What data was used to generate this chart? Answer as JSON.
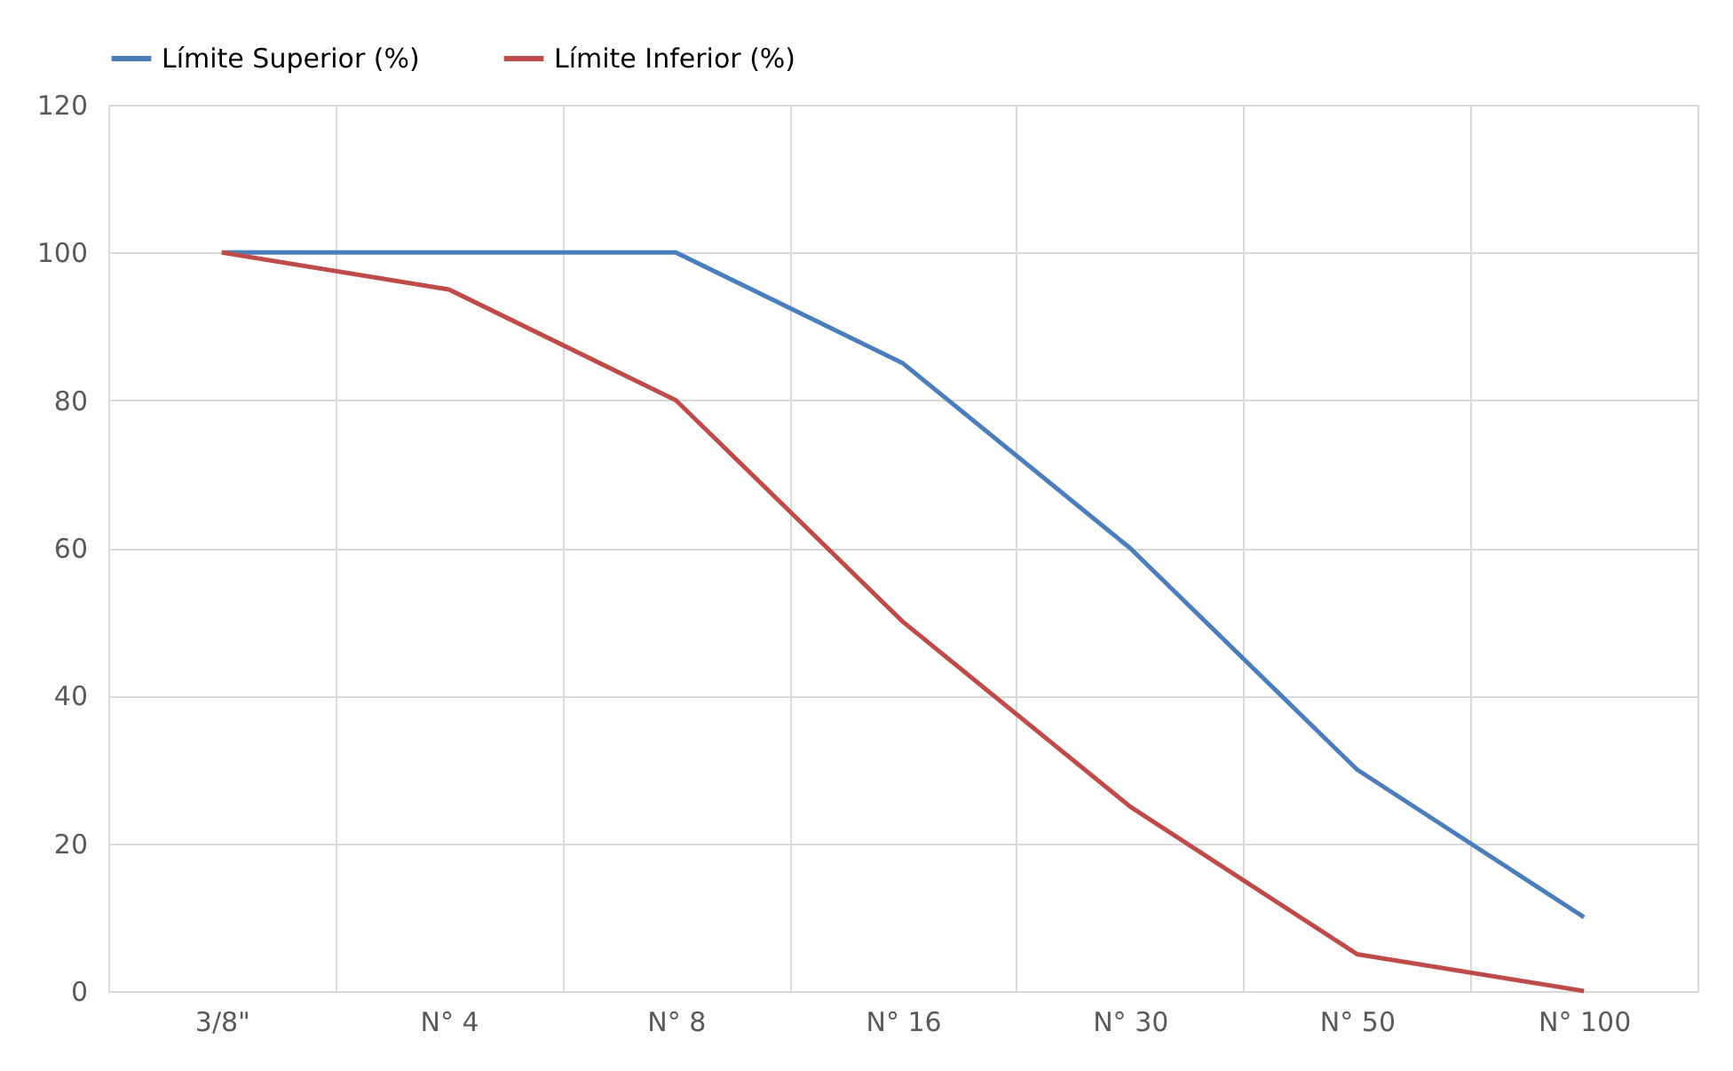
{
  "chart_data": {
    "type": "line",
    "categories": [
      "3/8\"",
      "N° 4",
      "N° 8",
      "N° 16",
      "N° 30",
      "N° 50",
      "N° 100"
    ],
    "series": [
      {
        "name": "Límite Superior (%)",
        "color": "#4a7ebb",
        "values": [
          100,
          100,
          100,
          85,
          60,
          30,
          10
        ]
      },
      {
        "name": "Límite Inferior (%)",
        "color": "#be4b48",
        "values": [
          100,
          95,
          80,
          50,
          25,
          5,
          0
        ]
      }
    ],
    "ylim": [
      0,
      120
    ],
    "yticks": [
      0,
      20,
      40,
      60,
      80,
      100,
      120
    ],
    "grid": true,
    "legend": "top",
    "marker": "none",
    "line_style": "solid"
  }
}
